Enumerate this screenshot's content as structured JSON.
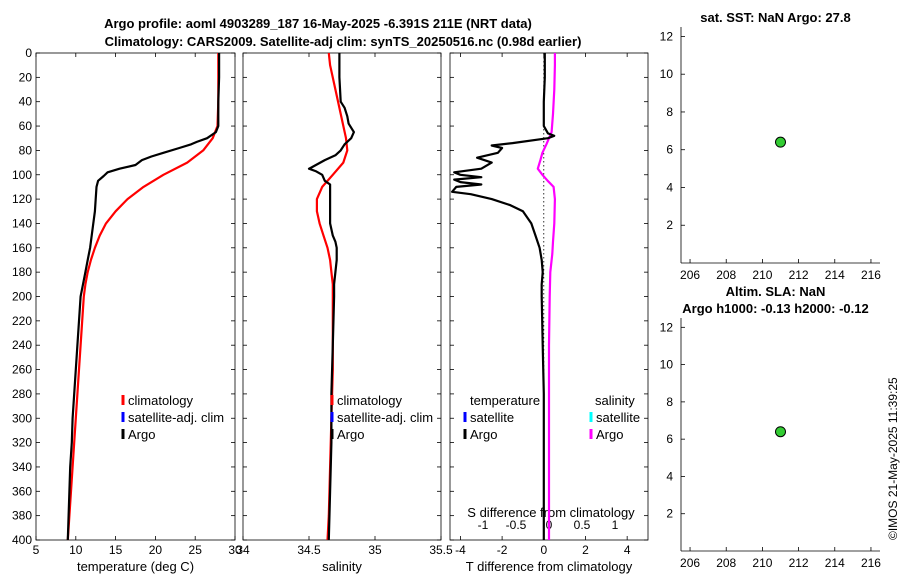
{
  "header": {
    "title_line1": "Argo profile: aoml 4903289_187 16-May-2025 -6.391S 211E (NRT data)",
    "title_line2": "Climatology: CARS2009. Satellite-adj clim: synTS_20250516.nc (0.98d earlier)"
  },
  "colors": {
    "climatology": "#ff0000",
    "satellite_adj": "#0000ff",
    "argo": "#000000",
    "salinity_diff": "#ff00ff",
    "salinity_sat": "#00ffff",
    "marker": "#33cc33"
  },
  "timestamp": "©IMOS 21-May-2025 11:39:25",
  "chart_data": [
    {
      "id": "temperature",
      "type": "line",
      "xlabel": "temperature (deg C)",
      "ylabel": "",
      "xlim": [
        5,
        30
      ],
      "ylim": [
        400,
        0
      ],
      "xticks": [
        5,
        10,
        15,
        20,
        25,
        30
      ],
      "yticks": [
        0,
        20,
        40,
        60,
        80,
        100,
        120,
        140,
        160,
        180,
        200,
        220,
        240,
        260,
        280,
        300,
        320,
        340,
        360,
        380,
        400
      ],
      "legend": [
        "climatology",
        "satellite-adj. clim",
        "Argo"
      ],
      "series": [
        {
          "name": "climatology",
          "points": [
            [
              27.9,
              0
            ],
            [
              27.9,
              20
            ],
            [
              27.9,
              40
            ],
            [
              27.8,
              60
            ],
            [
              27.2,
              70
            ],
            [
              26.0,
              80
            ],
            [
              24.0,
              90
            ],
            [
              21.0,
              100
            ],
            [
              18.5,
              110
            ],
            [
              16.5,
              120
            ],
            [
              15.0,
              130
            ],
            [
              13.8,
              140
            ],
            [
              13.0,
              150
            ],
            [
              12.4,
              160
            ],
            [
              11.9,
              170
            ],
            [
              11.5,
              180
            ],
            [
              11.2,
              190
            ],
            [
              11.0,
              200
            ],
            [
              10.8,
              220
            ],
            [
              10.6,
              240
            ],
            [
              10.4,
              260
            ],
            [
              10.2,
              280
            ],
            [
              10.0,
              300
            ],
            [
              9.8,
              320
            ],
            [
              9.6,
              340
            ],
            [
              9.4,
              360
            ],
            [
              9.2,
              380
            ],
            [
              9.0,
              400
            ]
          ]
        },
        {
          "name": "Argo",
          "points": [
            [
              28.0,
              0
            ],
            [
              28.0,
              20
            ],
            [
              27.9,
              40
            ],
            [
              27.9,
              60
            ],
            [
              27.6,
              65
            ],
            [
              26.5,
              70
            ],
            [
              25.2,
              73
            ],
            [
              24.5,
              75
            ],
            [
              23.0,
              78
            ],
            [
              21.0,
              82
            ],
            [
              19.5,
              85
            ],
            [
              18.3,
              88
            ],
            [
              17.5,
              92
            ],
            [
              15.5,
              95
            ],
            [
              14.0,
              98
            ],
            [
              13.5,
              101
            ],
            [
              12.8,
              105
            ],
            [
              12.6,
              110
            ],
            [
              12.5,
              120
            ],
            [
              12.4,
              130
            ],
            [
              12.2,
              140
            ],
            [
              12.0,
              150
            ],
            [
              11.8,
              160
            ],
            [
              11.5,
              170
            ],
            [
              11.2,
              180
            ],
            [
              10.9,
              190
            ],
            [
              10.6,
              200
            ],
            [
              10.4,
              220
            ],
            [
              10.2,
              240
            ],
            [
              10.0,
              260
            ],
            [
              9.8,
              280
            ],
            [
              9.6,
              300
            ],
            [
              9.5,
              320
            ],
            [
              9.3,
              340
            ],
            [
              9.2,
              360
            ],
            [
              9.1,
              380
            ],
            [
              9.0,
              400
            ]
          ]
        }
      ]
    },
    {
      "id": "salinity",
      "type": "line",
      "xlabel": "salinity",
      "ylabel": "",
      "xlim": [
        34,
        35.5
      ],
      "ylim": [
        400,
        0
      ],
      "xticks": [
        34,
        34.5,
        35,
        35.5
      ],
      "legend": [
        "climatology",
        "satellite-adj. clim",
        "Argo"
      ],
      "series": [
        {
          "name": "climatology",
          "points": [
            [
              34.65,
              0
            ],
            [
              34.66,
              10
            ],
            [
              34.7,
              30
            ],
            [
              34.74,
              50
            ],
            [
              34.78,
              70
            ],
            [
              34.79,
              80
            ],
            [
              34.76,
              90
            ],
            [
              34.68,
              100
            ],
            [
              34.6,
              110
            ],
            [
              34.56,
              120
            ],
            [
              34.56,
              130
            ],
            [
              34.58,
              140
            ],
            [
              34.61,
              150
            ],
            [
              34.64,
              160
            ],
            [
              34.66,
              170
            ],
            [
              34.67,
              180
            ],
            [
              34.68,
              190
            ],
            [
              34.68,
              200
            ],
            [
              34.68,
              220
            ],
            [
              34.68,
              260
            ],
            [
              34.67,
              300
            ],
            [
              34.66,
              340
            ],
            [
              34.65,
              380
            ],
            [
              34.64,
              400
            ]
          ]
        },
        {
          "name": "Argo",
          "points": [
            [
              34.73,
              0
            ],
            [
              34.73,
              20
            ],
            [
              34.74,
              40
            ],
            [
              34.77,
              45
            ],
            [
              34.79,
              52
            ],
            [
              34.8,
              58
            ],
            [
              34.84,
              65
            ],
            [
              34.82,
              70
            ],
            [
              34.77,
              75
            ],
            [
              34.74,
              80
            ],
            [
              34.7,
              84
            ],
            [
              34.62,
              88
            ],
            [
              34.52,
              94
            ],
            [
              34.5,
              95
            ],
            [
              34.55,
              97
            ],
            [
              34.6,
              100
            ],
            [
              34.62,
              105
            ],
            [
              34.66,
              108
            ],
            [
              34.66,
              120
            ],
            [
              34.66,
              140
            ],
            [
              34.68,
              150
            ],
            [
              34.7,
              155
            ],
            [
              34.71,
              160
            ],
            [
              34.71,
              170
            ],
            [
              34.7,
              180
            ],
            [
              34.69,
              190
            ],
            [
              34.69,
              200
            ],
            [
              34.68,
              240
            ],
            [
              34.67,
              280
            ],
            [
              34.67,
              320
            ],
            [
              34.66,
              360
            ],
            [
              34.65,
              400
            ]
          ]
        }
      ]
    },
    {
      "id": "difference",
      "type": "line",
      "xlabel": "T difference from climatology",
      "xlabel_top": "S difference from climatology",
      "xlim": [
        -4.5,
        5
      ],
      "ylim": [
        400,
        0
      ],
      "xticks_bottom": [
        -4,
        -2,
        0,
        2,
        4
      ],
      "xticks_top_values": [
        -1,
        -0.5,
        0,
        0.5,
        1
      ],
      "xticks_top_labels": [
        "-1",
        "-0.5",
        "0",
        "0.5",
        "1"
      ],
      "legend_temperature_title": "temperature",
      "legend_salinity_title": "salinity",
      "legend_temperature": [
        "satellite",
        "Argo"
      ],
      "legend_salinity": [
        "satellite",
        "Argo"
      ],
      "series": [
        {
          "name": "T difference Argo",
          "points": [
            [
              0.05,
              0
            ],
            [
              0.05,
              20
            ],
            [
              0.0,
              40
            ],
            [
              0.0,
              60
            ],
            [
              0.2,
              66
            ],
            [
              0.5,
              68
            ],
            [
              0.2,
              70
            ],
            [
              -1.5,
              74
            ],
            [
              -2.5,
              76
            ],
            [
              -2.0,
              78
            ],
            [
              -2.2,
              82
            ],
            [
              -3.2,
              86
            ],
            [
              -2.5,
              90
            ],
            [
              -3.0,
              95
            ],
            [
              -4.3,
              98
            ],
            [
              -4.0,
              100
            ],
            [
              -3.0,
              102
            ],
            [
              -4.3,
              104
            ],
            [
              -4.0,
              106
            ],
            [
              -3.0,
              108
            ],
            [
              -4.2,
              110
            ],
            [
              -4.4,
              114
            ],
            [
              -3.5,
              116
            ],
            [
              -2.5,
              120
            ],
            [
              -1.6,
              125
            ],
            [
              -1.0,
              130
            ],
            [
              -0.6,
              140
            ],
            [
              -0.4,
              150
            ],
            [
              -0.2,
              160
            ],
            [
              -0.1,
              170
            ],
            [
              -0.05,
              180
            ],
            [
              -0.1,
              190
            ],
            [
              -0.1,
              200
            ],
            [
              -0.05,
              240
            ],
            [
              0.0,
              280
            ],
            [
              0.0,
              320
            ],
            [
              0.0,
              360
            ],
            [
              0.0,
              400
            ]
          ]
        },
        {
          "name": "S difference Argo",
          "points": [
            [
              0.09,
              0
            ],
            [
              0.09,
              10
            ],
            [
              0.08,
              30
            ],
            [
              0.06,
              50
            ],
            [
              0.04,
              65
            ],
            [
              -0.04,
              75
            ],
            [
              -0.1,
              82
            ],
            [
              -0.13,
              88
            ],
            [
              -0.17,
              95
            ],
            [
              -0.1,
              100
            ],
            [
              -0.02,
              105
            ],
            [
              0.07,
              110
            ],
            [
              0.09,
              120
            ],
            [
              0.08,
              140
            ],
            [
              0.06,
              155
            ],
            [
              0.05,
              165
            ],
            [
              0.02,
              180
            ],
            [
              0.01,
              200
            ],
            [
              0.0,
              240
            ],
            [
              0.0,
              300
            ],
            [
              0.0,
              360
            ],
            [
              0.0,
              400
            ]
          ]
        }
      ]
    },
    {
      "id": "sst",
      "type": "scatter",
      "title": "sat. SST: NaN Argo: 27.8",
      "xlim": [
        205.5,
        216.5
      ],
      "ylim": [
        0,
        12.5
      ],
      "xticks": [
        206,
        208,
        210,
        212,
        214,
        216
      ],
      "yticks": [
        2,
        4,
        6,
        8,
        10,
        12
      ],
      "points": [
        [
          211,
          6.4
        ]
      ]
    },
    {
      "id": "sla",
      "type": "scatter",
      "title": "Altim. SLA: NaN",
      "subtitle": "Argo h1000: -0.13 h2000: -0.12",
      "xlim": [
        205.5,
        216.5
      ],
      "ylim": [
        0,
        12.5
      ],
      "xticks": [
        206,
        208,
        210,
        212,
        214,
        216
      ],
      "yticks": [
        2,
        4,
        6,
        8,
        10,
        12
      ],
      "points": [
        [
          211,
          6.4
        ]
      ]
    }
  ]
}
